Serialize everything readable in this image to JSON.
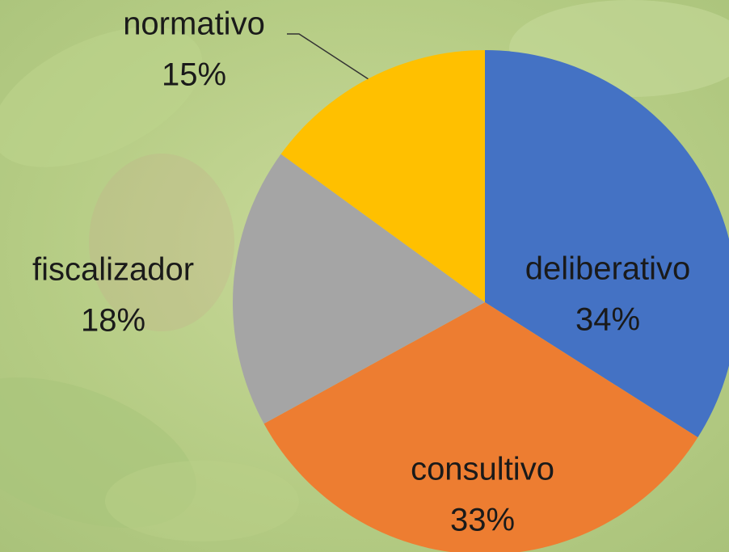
{
  "chart_data": {
    "type": "pie",
    "categories": [
      "deliberativo",
      "consultivo",
      "fiscalizador",
      "normativo"
    ],
    "values": [
      34,
      33,
      18,
      15
    ],
    "value_labels": [
      "34%",
      "33%",
      "18%",
      "15%"
    ],
    "colors": [
      "#4472c4",
      "#ed7d31",
      "#a5a5a5",
      "#ffc000"
    ]
  }
}
